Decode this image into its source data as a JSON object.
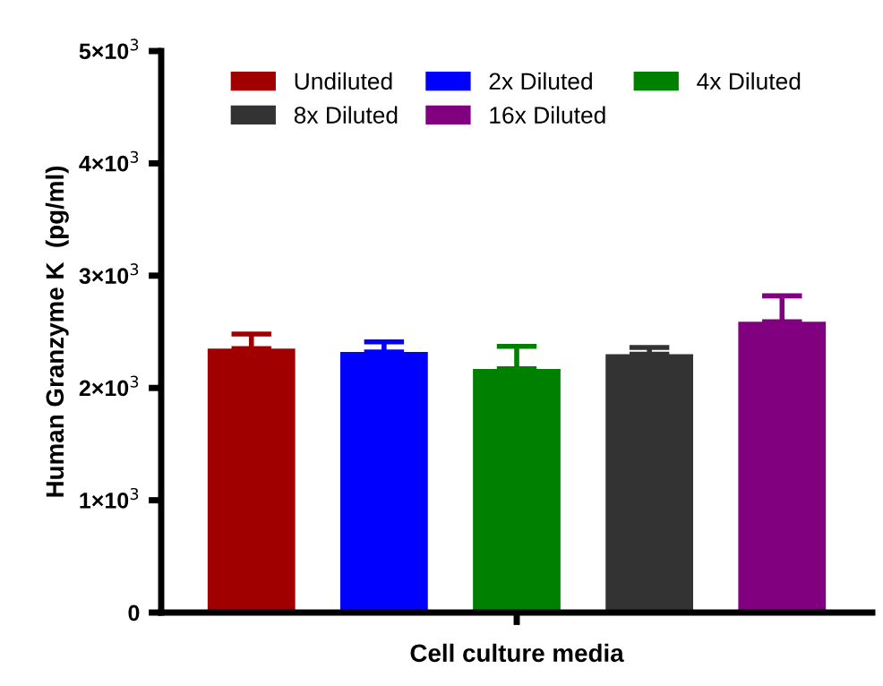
{
  "chart_data": {
    "type": "bar",
    "xlabel": "Cell culture media",
    "ylabel": "Human Granzyme K  (pg/ml)",
    "categories": [
      null
    ],
    "series": [
      {
        "name": "Undiluted",
        "color": "#a00000",
        "values": [
          2350
        ],
        "errors": [
          [
            2350,
            2480
          ]
        ]
      },
      {
        "name": "2x Diluted",
        "color": "#0000ff",
        "values": [
          2320
        ],
        "errors": [
          [
            2320,
            2410
          ]
        ]
      },
      {
        "name": "4x Diluted",
        "color": "#008000",
        "values": [
          2170
        ],
        "errors": [
          [
            2170,
            2370
          ]
        ]
      },
      {
        "name": "8x Diluted",
        "color": "#333333",
        "values": [
          2300
        ],
        "errors": [
          [
            2300,
            2360
          ]
        ]
      },
      {
        "name": "16x Diluted",
        "color": "#800080",
        "values": [
          2590
        ],
        "errors": [
          [
            2590,
            2820
          ]
        ]
      }
    ],
    "ylim": [
      0,
      5000
    ],
    "yticks": [
      0,
      {
        "value": 1000,
        "label": "1×10$^{3}$"
      },
      {
        "value": 2000,
        "label": "2×10$^{3}$"
      },
      {
        "value": 3000,
        "label": "3×10$^{3}$"
      },
      {
        "value": 4000,
        "label": "4×10$^{3}$"
      },
      {
        "value": 5000,
        "label": "5×10$^{3}$"
      }
    ],
    "grid": false,
    "legend": "top"
  }
}
